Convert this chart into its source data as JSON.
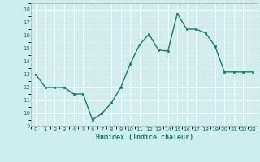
{
  "x": [
    0,
    1,
    2,
    3,
    4,
    5,
    6,
    7,
    8,
    9,
    10,
    11,
    12,
    13,
    14,
    15,
    16,
    17,
    18,
    19,
    20,
    21,
    22,
    23
  ],
  "y": [
    13,
    12,
    12,
    12,
    11.5,
    11.5,
    9.5,
    10,
    10.8,
    12,
    13.8,
    15.3,
    16.1,
    14.9,
    14.8,
    17.7,
    16.5,
    16.5,
    16.2,
    15.2,
    13.2,
    13.2,
    13.2,
    13.2
  ],
  "xlim": [
    -0.5,
    23.5
  ],
  "ylim": [
    9,
    18.5
  ],
  "yticks": [
    9,
    10,
    11,
    12,
    13,
    14,
    15,
    16,
    17,
    18
  ],
  "xticks": [
    0,
    1,
    2,
    3,
    4,
    5,
    6,
    7,
    8,
    9,
    10,
    11,
    12,
    13,
    14,
    15,
    16,
    17,
    18,
    19,
    20,
    21,
    22,
    23
  ],
  "xlabel": "Humidex (Indice chaleur)",
  "line_color": "#1a7a6e",
  "marker_color": "#1a7a6e",
  "bg_color": "#ceeeed",
  "grid_color": "#ffffff",
  "grid_minor_color": "#ddf5f5"
}
